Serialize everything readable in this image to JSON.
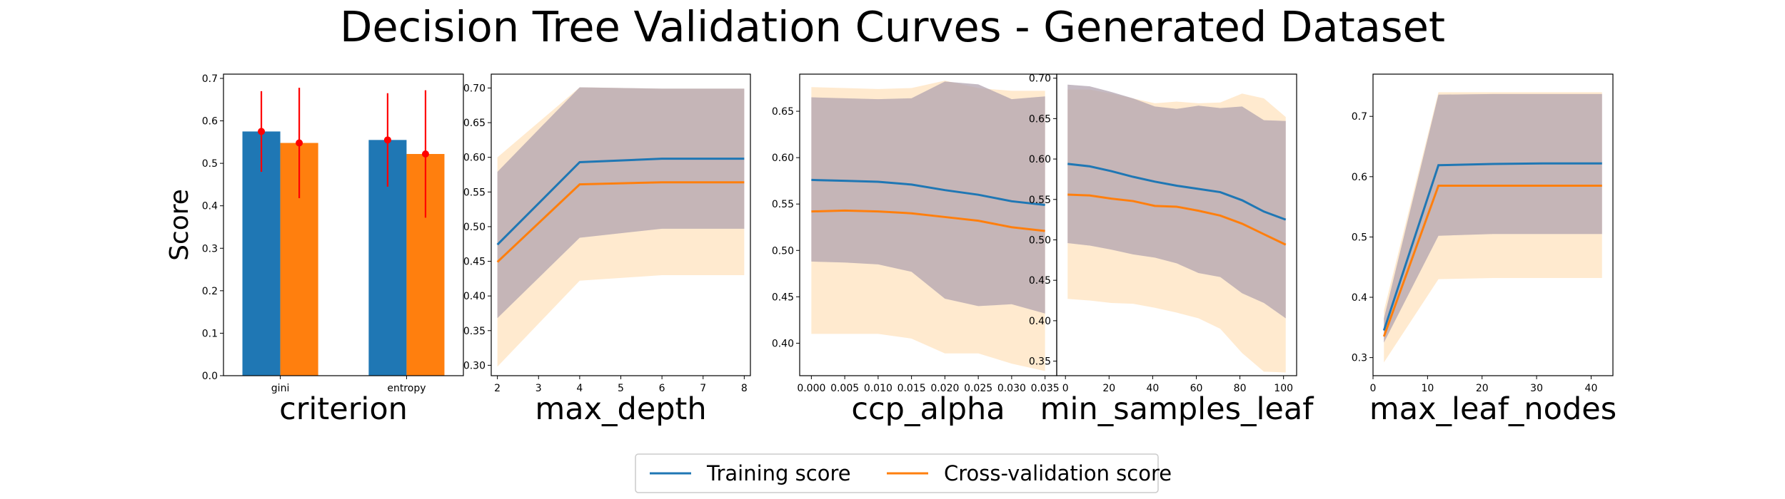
{
  "figure": {
    "title": "Decision Tree Validation Curves - Generated Dataset",
    "legend": {
      "placement": "bottom-center",
      "entries": [
        "Training score",
        "Cross-validation score"
      ]
    },
    "colors": {
      "train": "#1f77b4",
      "cv": "#ff7f0e",
      "train_band": "#aab4e6",
      "cv_band": "#ffd9a8",
      "error_bar": "#ff0000"
    }
  },
  "chart_data": [
    {
      "type": "bar",
      "xlabel": "criterion",
      "ylabel": "Score",
      "ylim": [
        0,
        0.71
      ],
      "yticks": [
        0.0,
        0.1,
        0.2,
        0.3,
        0.4,
        0.5,
        0.6,
        0.7
      ],
      "yticklabels": [
        "0.0",
        "0.1",
        "0.2",
        "0.3",
        "0.4",
        "0.5",
        "0.6",
        "0.7"
      ],
      "categories": [
        "gini",
        "entropy"
      ],
      "series": [
        {
          "name": "Training score",
          "values": [
            0.575,
            0.555
          ],
          "std": [
            0.095,
            0.11
          ]
        },
        {
          "name": "Cross-validation score",
          "values": [
            0.548,
            0.522
          ],
          "std": [
            0.13,
            0.15
          ]
        }
      ]
    },
    {
      "type": "line",
      "xlabel": "max_depth",
      "xlim": [
        1.85,
        8.15
      ],
      "ylim": [
        0.285,
        0.72
      ],
      "xticks": [
        2,
        3,
        4,
        5,
        6,
        7,
        8
      ],
      "xticklabels": [
        "2",
        "3",
        "4",
        "5",
        "6",
        "7",
        "8"
      ],
      "yticks": [
        0.3,
        0.35,
        0.4,
        0.45,
        0.5,
        0.55,
        0.6,
        0.65,
        0.7
      ],
      "yticklabels": [
        "0.30",
        "0.35",
        "0.40",
        "0.45",
        "0.50",
        "0.55",
        "0.60",
        "0.65",
        "0.70"
      ],
      "x": [
        2,
        4,
        6,
        8
      ],
      "series": [
        {
          "name": "Training score",
          "values": [
            0.474,
            0.593,
            0.598,
            0.598
          ],
          "lower": [
            0.368,
            0.484,
            0.497,
            0.497
          ],
          "upper": [
            0.579,
            0.701,
            0.699,
            0.699
          ]
        },
        {
          "name": "Cross-validation score",
          "values": [
            0.449,
            0.561,
            0.564,
            0.564
          ],
          "lower": [
            0.298,
            0.422,
            0.43,
            0.43
          ],
          "upper": [
            0.6,
            0.701,
            0.699,
            0.699
          ]
        }
      ]
    },
    {
      "type": "line",
      "xlabel": "ccp_alpha",
      "xlim": [
        -0.00175,
        0.03675
      ],
      "ylim": [
        0.365,
        0.69
      ],
      "xticks": [
        0.0,
        0.005,
        0.01,
        0.015,
        0.02,
        0.025,
        0.03,
        0.035
      ],
      "xticklabels": [
        "0.000",
        "0.005",
        "0.010",
        "0.015",
        "0.020",
        "0.025",
        "0.030",
        "0.035"
      ],
      "yticks": [
        0.4,
        0.45,
        0.5,
        0.55,
        0.6,
        0.65
      ],
      "yticklabels": [
        "0.40",
        "0.45",
        "0.50",
        "0.55",
        "0.60",
        "0.65"
      ],
      "x": [
        0.0,
        0.005,
        0.01,
        0.015,
        0.02,
        0.025,
        0.03,
        0.035
      ],
      "series": [
        {
          "name": "Training score",
          "values": [
            0.576,
            0.575,
            0.574,
            0.571,
            0.565,
            0.56,
            0.553,
            0.549
          ],
          "lower": [
            0.488,
            0.487,
            0.485,
            0.477,
            0.448,
            0.44,
            0.442,
            0.432
          ],
          "upper": [
            0.665,
            0.664,
            0.663,
            0.664,
            0.682,
            0.679,
            0.663,
            0.666
          ]
        },
        {
          "name": "Cross-validation score",
          "values": [
            0.542,
            0.543,
            0.542,
            0.54,
            0.536,
            0.532,
            0.525,
            0.521
          ],
          "lower": [
            0.41,
            0.41,
            0.41,
            0.405,
            0.389,
            0.389,
            0.378,
            0.37
          ],
          "upper": [
            0.676,
            0.675,
            0.674,
            0.675,
            0.683,
            0.675,
            0.672,
            0.672
          ]
        }
      ]
    },
    {
      "type": "line",
      "xlabel": "min_samples_leaf",
      "xlim": [
        -4,
        106
      ],
      "ylim": [
        0.332,
        0.705
      ],
      "xticks": [
        0,
        20,
        40,
        60,
        80,
        100
      ],
      "xticklabels": [
        "0",
        "20",
        "40",
        "60",
        "80",
        "100"
      ],
      "yticks": [
        0.35,
        0.4,
        0.45,
        0.5,
        0.55,
        0.6,
        0.65,
        0.7
      ],
      "yticklabels": [
        "0.35",
        "0.40",
        "0.45",
        "0.50",
        "0.55",
        "0.60",
        "0.65",
        "0.70"
      ],
      "x": [
        1,
        11,
        21,
        31,
        41,
        51,
        61,
        71,
        81,
        91,
        101
      ],
      "series": [
        {
          "name": "Training score",
          "values": [
            0.594,
            0.591,
            0.585,
            0.578,
            0.572,
            0.567,
            0.563,
            0.559,
            0.549,
            0.535,
            0.525
          ],
          "lower": [
            0.496,
            0.493,
            0.488,
            0.482,
            0.478,
            0.471,
            0.459,
            0.454,
            0.434,
            0.422,
            0.403
          ],
          "upper": [
            0.692,
            0.69,
            0.683,
            0.675,
            0.665,
            0.662,
            0.666,
            0.663,
            0.665,
            0.648,
            0.647
          ]
        },
        {
          "name": "Cross-validation score",
          "values": [
            0.556,
            0.555,
            0.551,
            0.548,
            0.542,
            0.541,
            0.536,
            0.53,
            0.52,
            0.507,
            0.494
          ],
          "lower": [
            0.427,
            0.425,
            0.422,
            0.421,
            0.416,
            0.41,
            0.403,
            0.39,
            0.36,
            0.337,
            0.336
          ],
          "upper": [
            0.686,
            0.686,
            0.681,
            0.675,
            0.669,
            0.671,
            0.669,
            0.67,
            0.681,
            0.675,
            0.652
          ]
        }
      ]
    },
    {
      "type": "line",
      "xlabel": "max_leaf_nodes",
      "xlim": [
        0,
        44
      ],
      "ylim": [
        0.27,
        0.77
      ],
      "xticks": [
        0,
        10,
        20,
        30,
        40
      ],
      "xticklabels": [
        "0",
        "10",
        "20",
        "30",
        "40"
      ],
      "yticks": [
        0.3,
        0.4,
        0.5,
        0.6,
        0.7
      ],
      "yticklabels": [
        "0.3",
        "0.4",
        "0.5",
        "0.6",
        "0.7"
      ],
      "x": [
        2,
        12,
        22,
        32,
        42
      ],
      "series": [
        {
          "name": "Training score",
          "values": [
            0.345,
            0.619,
            0.621,
            0.622,
            0.622
          ],
          "lower": [
            0.325,
            0.502,
            0.505,
            0.505,
            0.505
          ],
          "upper": [
            0.365,
            0.736,
            0.737,
            0.737,
            0.737
          ]
        },
        {
          "name": "Cross-validation score",
          "values": [
            0.335,
            0.585,
            0.585,
            0.585,
            0.585
          ],
          "lower": [
            0.292,
            0.43,
            0.432,
            0.432,
            0.432
          ],
          "upper": [
            0.378,
            0.74,
            0.74,
            0.74,
            0.74
          ]
        }
      ]
    }
  ]
}
